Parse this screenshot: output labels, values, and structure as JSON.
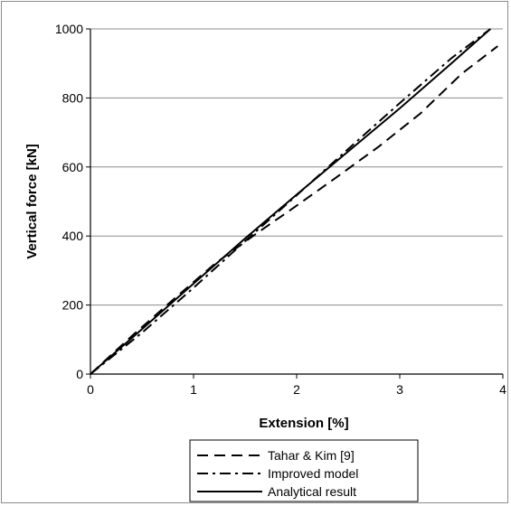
{
  "chart_data": {
    "type": "line",
    "xlabel": "Extension [%]",
    "ylabel": "Vertical force [kN]",
    "xlim": [
      0,
      4
    ],
    "ylim": [
      0,
      1000
    ],
    "xticks": [
      "0",
      "1",
      "2",
      "3",
      "4"
    ],
    "yticks": [
      "0",
      "200",
      "400",
      "600",
      "800",
      "1000"
    ],
    "grid": "horizontal",
    "legend_position": "bottom",
    "series": [
      {
        "name": "Tahar & Kim [9]",
        "style": "dashed",
        "color": "#000000",
        "x": [
          0,
          0.4,
          0.8,
          1.2,
          1.6,
          2.0,
          2.4,
          2.8,
          3.2,
          3.6,
          3.95
        ],
        "y": [
          0,
          110,
          215,
          318,
          405,
          488,
          573,
          660,
          755,
          870,
          950
        ]
      },
      {
        "name": "Improved model",
        "style": "dashdot",
        "color": "#000000",
        "x": [
          0,
          0.5,
          1.0,
          1.5,
          2.0,
          2.5,
          3.0,
          3.5,
          3.88
        ],
        "y": [
          0,
          120,
          250,
          385,
          518,
          652,
          785,
          915,
          1000
        ]
      },
      {
        "name": "Analytical result",
        "style": "solid",
        "color": "#000000",
        "x": [
          0,
          0.5,
          1.0,
          1.5,
          2.0,
          2.5,
          3.0,
          3.5,
          3.88
        ],
        "y": [
          0,
          130,
          262,
          393,
          520,
          645,
          770,
          900,
          1000
        ]
      }
    ]
  }
}
